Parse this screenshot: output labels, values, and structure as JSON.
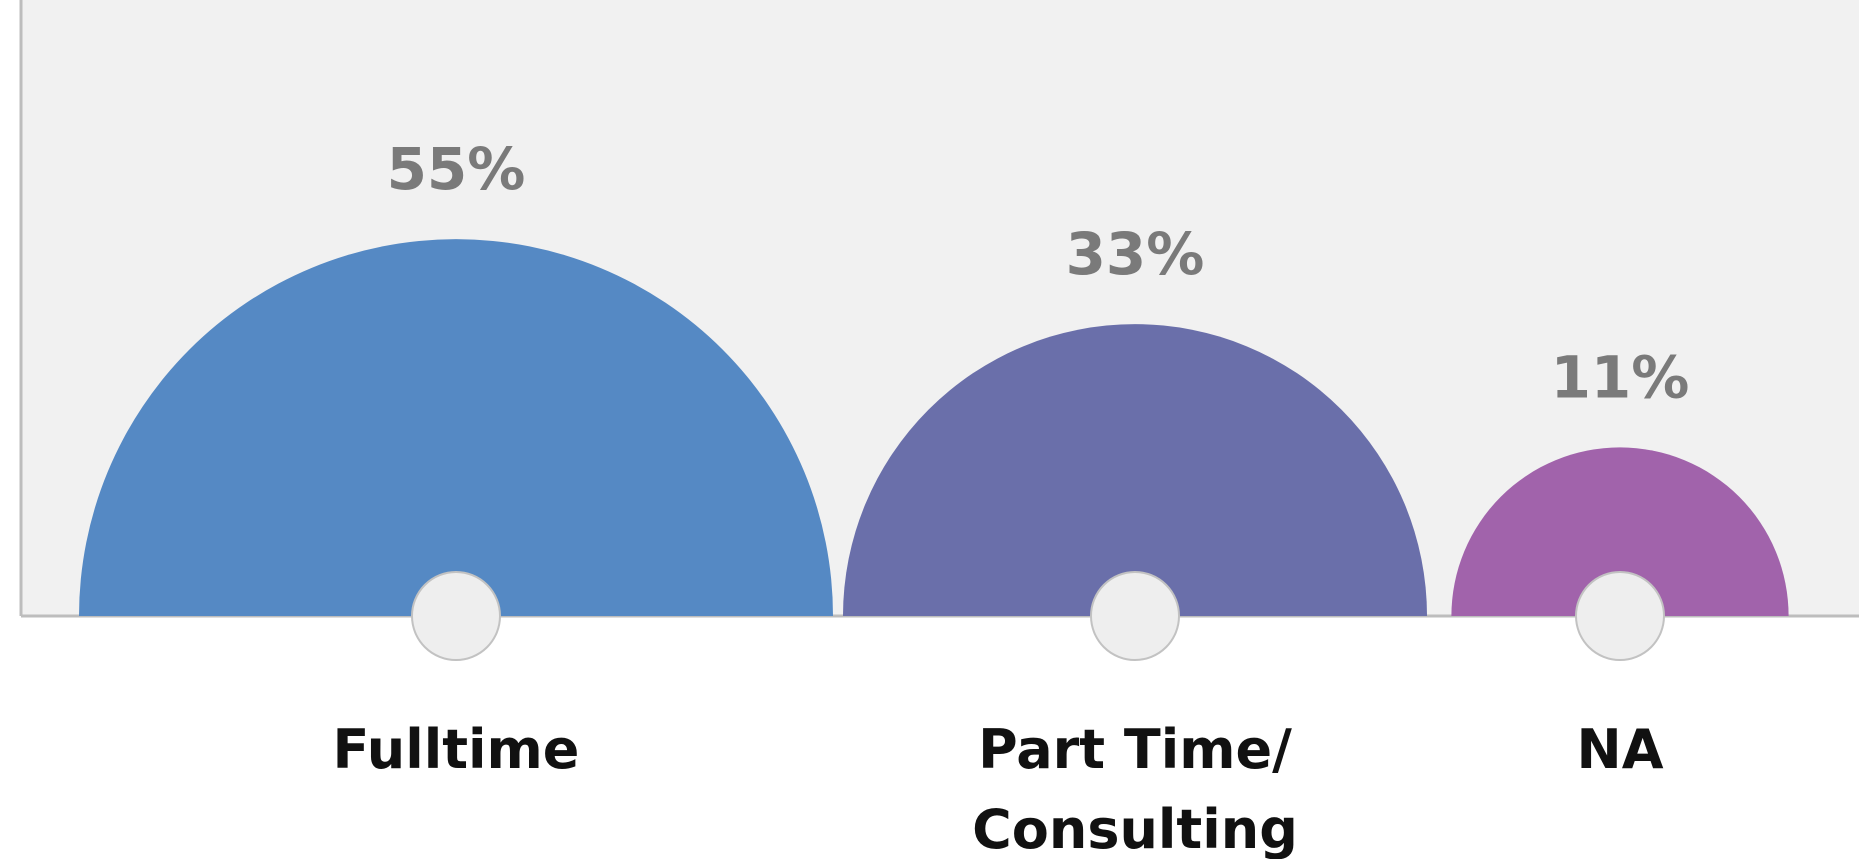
{
  "chart_data": {
    "type": "bar",
    "style": "semicircle",
    "categories": [
      [
        "Fulltime"
      ],
      [
        "Part Time/",
        "Consulting"
      ],
      [
        "NA"
      ]
    ],
    "values": [
      55,
      33,
      11
    ],
    "value_labels": [
      "55%",
      "33%",
      "11%"
    ],
    "colors": [
      "#5589c4",
      "#6a6faa",
      "#a163ab"
    ],
    "title": "",
    "xlabel": "",
    "ylabel": "",
    "grid": false,
    "legend": "none"
  },
  "colors": {
    "plot_background": "#f1f1f1",
    "axis": "#bdbdbd",
    "marker_fill": "#eeeeee",
    "marker_stroke": "#c2c2c2",
    "value_label": "#7a7a7a",
    "category_label": "#111111"
  }
}
